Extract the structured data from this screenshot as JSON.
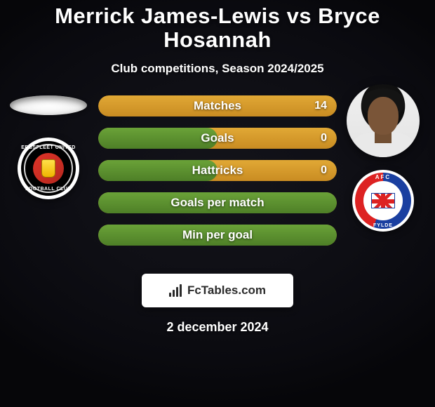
{
  "title": {
    "text": "Merrick James-Lewis vs Bryce Hosannah",
    "fontsize": 31,
    "color": "#ffffff"
  },
  "subtitle": {
    "text": "Club competitions, Season 2024/2025",
    "fontsize": 17,
    "color": "#ffffff"
  },
  "date": {
    "text": "2 december 2024",
    "fontsize": 18,
    "color": "#ffffff"
  },
  "player1": {
    "name": "Merrick James-Lewis",
    "club_top": "EBBSFLEET UNITED",
    "club_bot": "FOOTBALL CLUB"
  },
  "player2": {
    "name": "Bryce Hosannah",
    "club_top": "AFC",
    "club_bot": "FYLDE"
  },
  "colors": {
    "bar_bg": "#d69a2a",
    "bar_fill": "#5a8f2f",
    "bar_bg_grad_top": "#e1a835",
    "bar_bg_grad_bot": "#c98c22",
    "bar_fill_grad_top": "#6aa238",
    "bar_fill_grad_bot": "#4e7f27",
    "watermark_bg": "#ffffff"
  },
  "stats": {
    "label_fontsize": 17,
    "value_fontsize": 16,
    "rows": [
      {
        "label": "Matches",
        "left": "",
        "right": "14",
        "fill_pct": 0
      },
      {
        "label": "Goals",
        "left": "",
        "right": "0",
        "fill_pct": 50
      },
      {
        "label": "Hattricks",
        "left": "",
        "right": "0",
        "fill_pct": 50
      },
      {
        "label": "Goals per match",
        "left": "",
        "right": "",
        "fill_pct": 100
      },
      {
        "label": "Min per goal",
        "left": "",
        "right": "",
        "fill_pct": 100
      }
    ]
  },
  "watermark": {
    "text": "FcTables.com",
    "fontsize": 17
  }
}
